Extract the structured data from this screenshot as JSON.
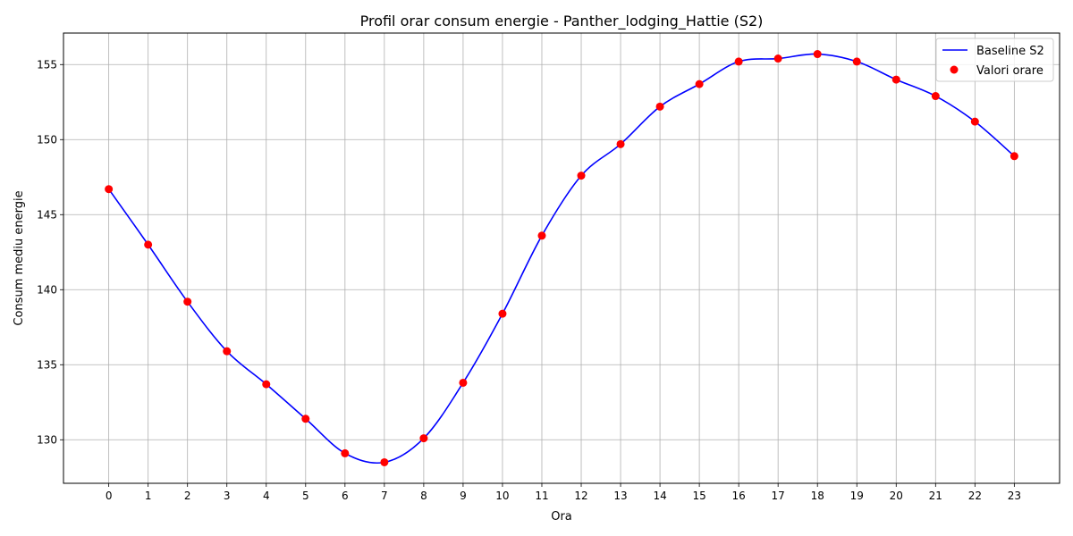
{
  "chart_data": {
    "type": "line",
    "title": "Profil orar consum energie - Panther_lodging_Hattie (S2)",
    "xlabel": "Ora",
    "ylabel": "Consum mediu energie",
    "x": [
      0,
      1,
      2,
      3,
      4,
      5,
      6,
      7,
      8,
      9,
      10,
      11,
      12,
      13,
      14,
      15,
      16,
      17,
      18,
      19,
      20,
      21,
      22,
      23
    ],
    "xlim": [
      -1.15,
      24.15
    ],
    "ylim": [
      127.1,
      157.1
    ],
    "yticks": [
      130,
      135,
      140,
      145,
      150,
      155
    ],
    "grid": true,
    "legend_position": "top-right",
    "series": [
      {
        "name": "Baseline S2",
        "kind": "line",
        "color": "#0000ff",
        "values": [
          146.7,
          143.0,
          139.2,
          135.9,
          133.7,
          131.4,
          129.1,
          128.5,
          130.1,
          133.8,
          138.4,
          143.6,
          147.6,
          149.7,
          152.2,
          153.7,
          155.2,
          155.4,
          155.7,
          155.2,
          154.0,
          152.9,
          151.2,
          148.9
        ]
      },
      {
        "name": "Valori orare",
        "kind": "scatter",
        "color": "#ff0000",
        "values": [
          146.7,
          143.0,
          139.2,
          135.9,
          133.7,
          131.4,
          129.1,
          128.5,
          130.1,
          133.8,
          138.4,
          143.6,
          147.6,
          149.7,
          152.2,
          153.7,
          155.2,
          155.4,
          155.7,
          155.2,
          154.0,
          152.9,
          151.2,
          148.9
        ]
      }
    ]
  }
}
